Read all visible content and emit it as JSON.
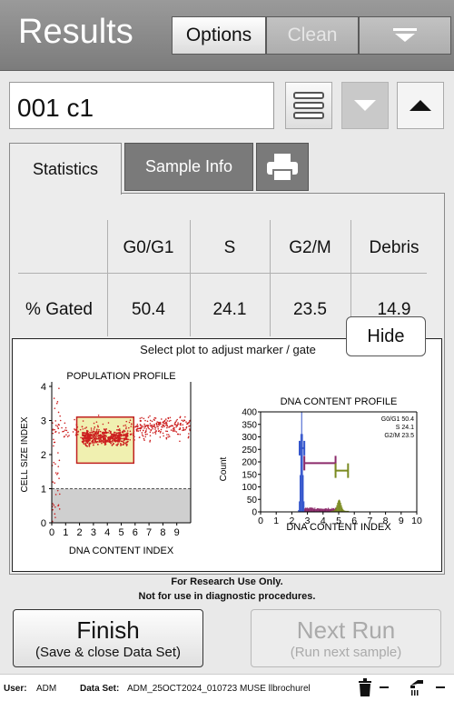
{
  "header": {
    "title": "Results",
    "options_label": "Options",
    "clean_label": "Clean",
    "menu_icon": "menu-down-icon"
  },
  "sample": {
    "name": "001 c1",
    "list_icon": "list-icon",
    "prev_icon": "arrow-down-icon",
    "next_icon": "arrow-up-icon"
  },
  "tabs": {
    "statistics": "Statistics",
    "sample_info": "Sample Info",
    "print_icon": "printer-icon"
  },
  "stats": {
    "columns": [
      "G0/G1",
      "S",
      "G2/M",
      "Debris"
    ],
    "row_label": "% Gated",
    "values": [
      "50.4",
      "24.1",
      "23.5",
      "14.9"
    ]
  },
  "hide_label": "Hide",
  "plots": {
    "caption": "Select plot to adjust marker / gate",
    "left": {
      "title": "POPULATION PROFILE",
      "ylabel": "CELL SIZE INDEX",
      "xlabel": "DNA CONTENT INDEX",
      "xticks": [
        "0",
        "1",
        "2",
        "3",
        "4",
        "5",
        "6",
        "7",
        "8",
        "9"
      ],
      "yticks": [
        "0",
        "1",
        "2",
        "3",
        "4"
      ]
    },
    "right": {
      "title": "DNA CONTENT PROFILE",
      "ylabel": "Count",
      "xlabel": "DNA CONTENT INDEX",
      "xticks": [
        "0",
        "1",
        "2",
        "3",
        "4",
        "5",
        "6",
        "7",
        "8",
        "9",
        "10"
      ],
      "yticks": [
        "0",
        "50",
        "100",
        "150",
        "200",
        "250",
        "300",
        "350",
        "400"
      ],
      "legend": [
        "G0/G1 50.4",
        "S 24.1",
        "G2/M 23.5"
      ]
    }
  },
  "chart_data": [
    {
      "type": "scatter",
      "title": "POPULATION PROFILE",
      "xlabel": "DNA CONTENT INDEX",
      "ylabel": "CELL SIZE INDEX",
      "xlim": [
        0,
        10
      ],
      "ylim": [
        0,
        4
      ],
      "gate": {
        "x": [
          1.8,
          5.9
        ],
        "y": [
          1.75,
          3.1
        ]
      },
      "threshold_y": 1.0,
      "series_color": "#cc1f1f"
    },
    {
      "type": "bar",
      "title": "DNA CONTENT PROFILE",
      "xlabel": "DNA CONTENT INDEX",
      "ylabel": "Count",
      "xlim": [
        0,
        10
      ],
      "ylim": [
        0,
        400
      ],
      "peaks": [
        {
          "name": "G0/G1",
          "center": 2.6,
          "height": 400,
          "color": "#3355cc"
        },
        {
          "name": "G2/M",
          "center": 5.0,
          "height": 45,
          "color": "#7a8a20"
        }
      ],
      "markers": [
        {
          "name": "G0/G1",
          "x": [
            2.5,
            2.8
          ]
        },
        {
          "name": "S",
          "x": [
            2.8,
            4.8
          ]
        },
        {
          "name": "G2/M",
          "x": [
            4.8,
            5.6
          ]
        }
      ]
    }
  ],
  "disclaimer": {
    "line1": "For Research Use Only.",
    "line2": "Not for use in diagnostic procedures."
  },
  "finish": {
    "main": "Finish",
    "sub": "(Save & close Data Set)"
  },
  "next_run": {
    "main": "Next Run",
    "sub": "(Run next sample)"
  },
  "footer": {
    "user_label": "User:",
    "user": "ADM",
    "dataset_label": "Data Set:",
    "dataset": "ADM_25OCT2024_010723 MUSE llbrochurel"
  },
  "colors": {
    "scatter": "#cc1f1f",
    "gate_fill": "#f0f0b0",
    "g0g1": "#3355cc",
    "s_phase": "#8b2a6a",
    "g2m": "#7a8a20"
  }
}
